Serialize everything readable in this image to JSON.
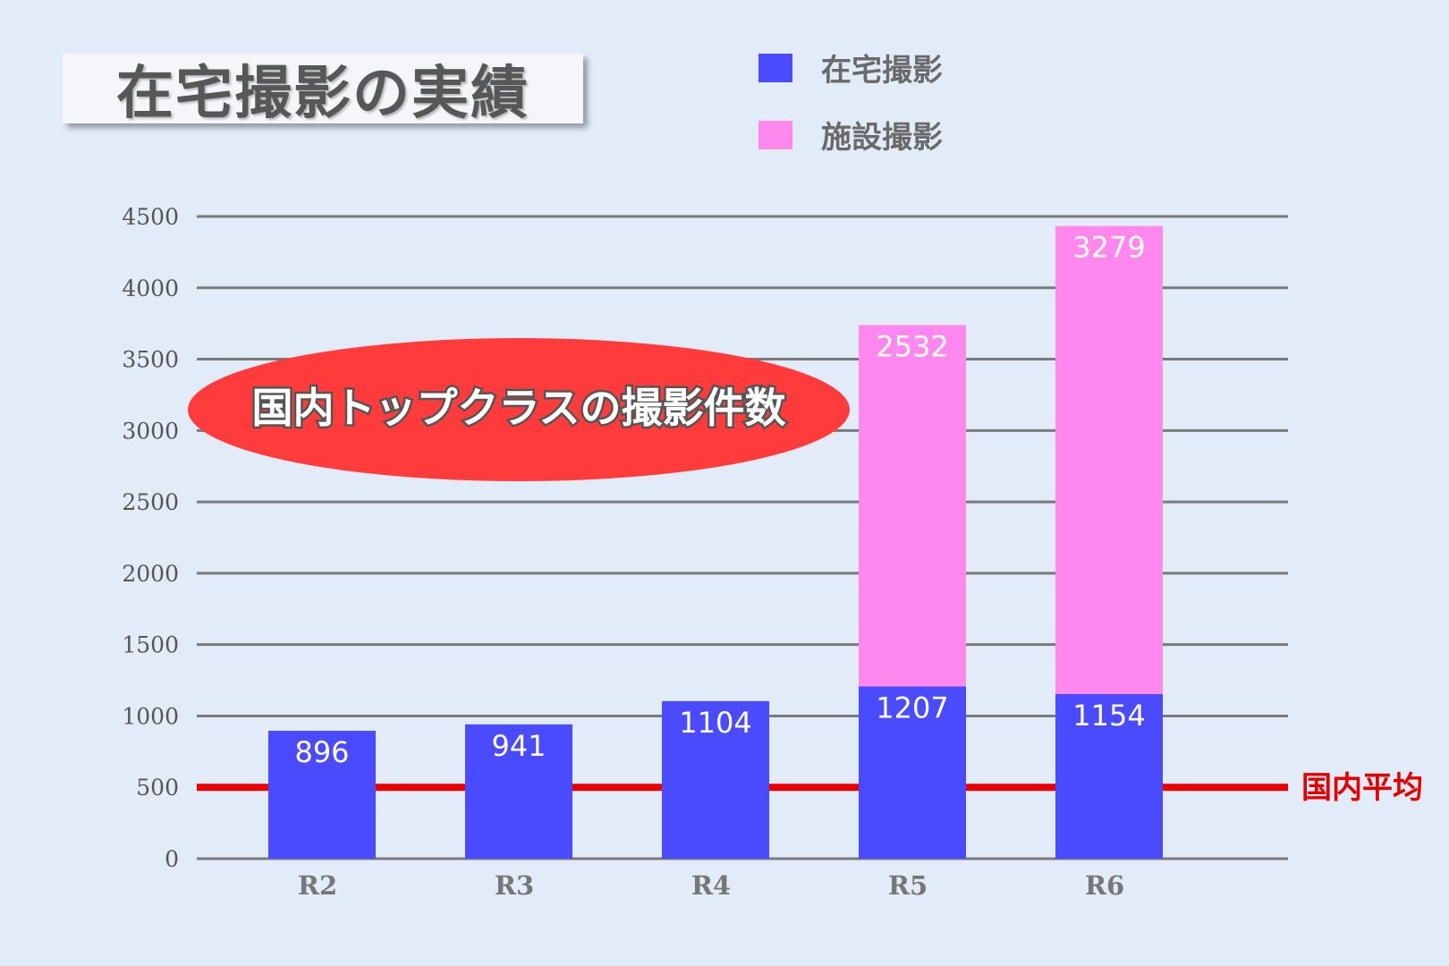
{
  "title": "在宅撮影の実績",
  "badge": "国内トップクラスの撮影件数",
  "reference_line": {
    "label": "国内平均",
    "value": 500,
    "color": "#e60000"
  },
  "colors": {
    "home": "#4a4aff",
    "facility": "#ff88ee",
    "grid": "#7a7a7a",
    "background": "#e2ecf9",
    "badge": "#ff3b3b"
  },
  "chart_data": {
    "type": "bar",
    "stacked": true,
    "categories": [
      "R2",
      "R3",
      "R4",
      "R5",
      "R6"
    ],
    "series": [
      {
        "name": "在宅撮影",
        "values": [
          896,
          941,
          1104,
          1207,
          1154
        ],
        "labels": [
          "896",
          "941",
          "1104",
          "1207",
          "1154"
        ]
      },
      {
        "name": "施設撮影",
        "values": [
          0,
          0,
          0,
          2532,
          3279
        ],
        "labels": [
          "",
          "",
          "",
          "2532",
          "3279"
        ]
      }
    ],
    "ylim": [
      0,
      4500
    ],
    "yticks": [
      0,
      500,
      1000,
      1500,
      2000,
      2500,
      3000,
      3500,
      4000,
      4500
    ],
    "legend_position": "top",
    "grid": true
  }
}
